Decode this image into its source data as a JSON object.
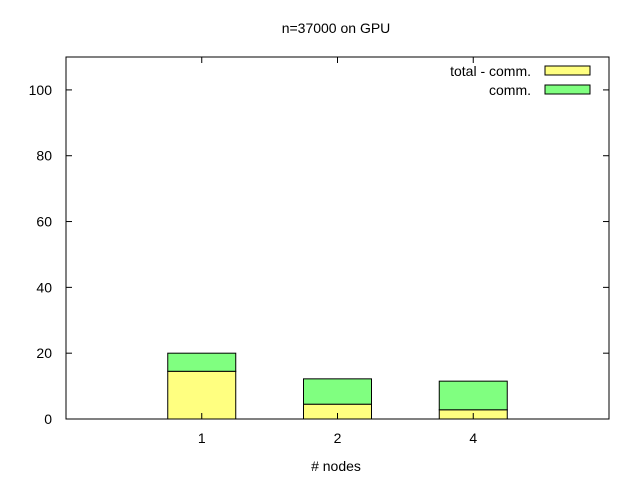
{
  "chart_data": {
    "type": "bar",
    "stacked": true,
    "title": "n=37000 on GPU",
    "xlabel": "# nodes",
    "ylabel": "",
    "categories": [
      "1",
      "2",
      "4"
    ],
    "series": [
      {
        "name": "total - comm.",
        "values": [
          14.5,
          4.5,
          2.8
        ],
        "color": "#ffff80"
      },
      {
        "name": "comm.",
        "values": [
          5.5,
          7.7,
          8.7
        ],
        "color": "#80ff80"
      }
    ],
    "ylim": [
      0,
      110
    ],
    "yticks": [
      0,
      20,
      40,
      60,
      80,
      100
    ],
    "grid": false,
    "legend_position": "top-right"
  }
}
